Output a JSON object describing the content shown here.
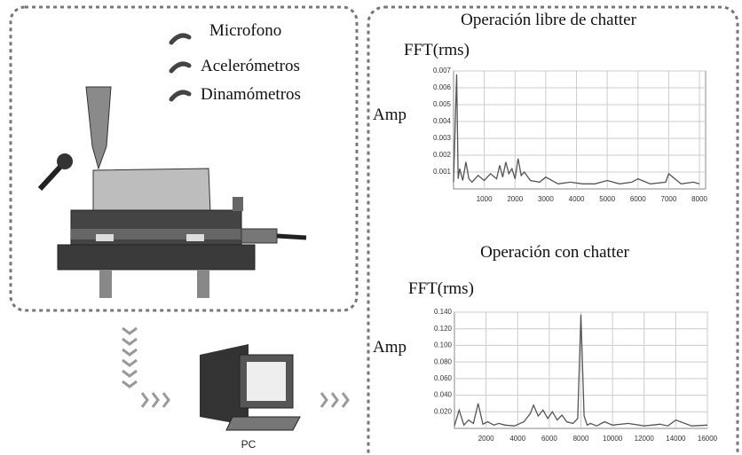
{
  "diagram": {
    "sensors": [
      "Microfono",
      "Acelerómetros",
      "Dinamómetros"
    ],
    "pc_label": "PC"
  },
  "chart_data": [
    {
      "type": "line",
      "title": "Operación libre de chatter",
      "subtitle": "FFT(rms)",
      "y_label": "Amp",
      "x": [
        0,
        100,
        150,
        200,
        300,
        400,
        500,
        600,
        800,
        1000,
        1200,
        1400,
        1500,
        1600,
        1700,
        1800,
        1900,
        2000,
        2100,
        2200,
        2300,
        2500,
        2800,
        3000,
        3400,
        3800,
        4200,
        4600,
        5000,
        5400,
        5800,
        6000,
        6400,
        6900,
        7000,
        7400,
        7800,
        8000
      ],
      "values": [
        0.0004,
        0.0068,
        0.0006,
        0.0012,
        0.0005,
        0.0016,
        0.0006,
        0.0004,
        0.0008,
        0.0005,
        0.0009,
        0.0006,
        0.0014,
        0.0007,
        0.0016,
        0.0009,
        0.0012,
        0.0006,
        0.0018,
        0.0008,
        0.001,
        0.0005,
        0.0004,
        0.0007,
        0.0003,
        0.0004,
        0.0003,
        0.0003,
        0.0005,
        0.0003,
        0.0004,
        0.0006,
        0.0003,
        0.0004,
        0.0009,
        0.0003,
        0.0004,
        0.0003
      ],
      "color": "#555555",
      "xlim": [
        0,
        8200
      ],
      "ylim": [
        0,
        0.007
      ],
      "xticks": [
        1000,
        2000,
        3000,
        4000,
        5000,
        6000,
        7000,
        8000
      ],
      "yticks": [
        0.001,
        0.002,
        0.003,
        0.004,
        0.005,
        0.006,
        0.007
      ],
      "grid": true
    },
    {
      "type": "line",
      "title": "Operación con chatter",
      "subtitle": "FFT(rms)",
      "y_label": "Amp",
      "x": [
        0,
        300,
        600,
        900,
        1200,
        1500,
        1800,
        2100,
        2500,
        2800,
        3200,
        3800,
        4400,
        4800,
        5000,
        5300,
        5600,
        5900,
        6200,
        6500,
        6800,
        7100,
        7500,
        7800,
        8000,
        8200,
        8400,
        8600,
        9000,
        9500,
        10000,
        11000,
        12000,
        13000,
        13500,
        14000,
        15000,
        16000
      ],
      "values": [
        0.003,
        0.022,
        0.004,
        0.01,
        0.006,
        0.03,
        0.005,
        0.008,
        0.004,
        0.006,
        0.004,
        0.003,
        0.008,
        0.018,
        0.028,
        0.015,
        0.022,
        0.012,
        0.02,
        0.01,
        0.016,
        0.008,
        0.006,
        0.012,
        0.137,
        0.015,
        0.004,
        0.006,
        0.003,
        0.008,
        0.004,
        0.006,
        0.003,
        0.005,
        0.003,
        0.01,
        0.003,
        0.004
      ],
      "color": "#555555",
      "xlim": [
        0,
        16000
      ],
      "ylim": [
        0,
        0.14
      ],
      "xticks": [
        2000,
        4000,
        6000,
        8000,
        10000,
        12000,
        14000,
        16000
      ],
      "yticks": [
        {
          "value": 0.02,
          "label": "0.020"
        },
        {
          "value": 0.04,
          "label": "0.040"
        },
        {
          "value": 0.06,
          "label": "0.060"
        },
        {
          "value": 0.08,
          "label": "0.080"
        },
        {
          "value": 0.1,
          "label": "0.100"
        },
        {
          "value": 0.12,
          "label": "0.120"
        },
        {
          "value": 0.14,
          "label": "0.140"
        }
      ],
      "grid": true
    }
  ]
}
